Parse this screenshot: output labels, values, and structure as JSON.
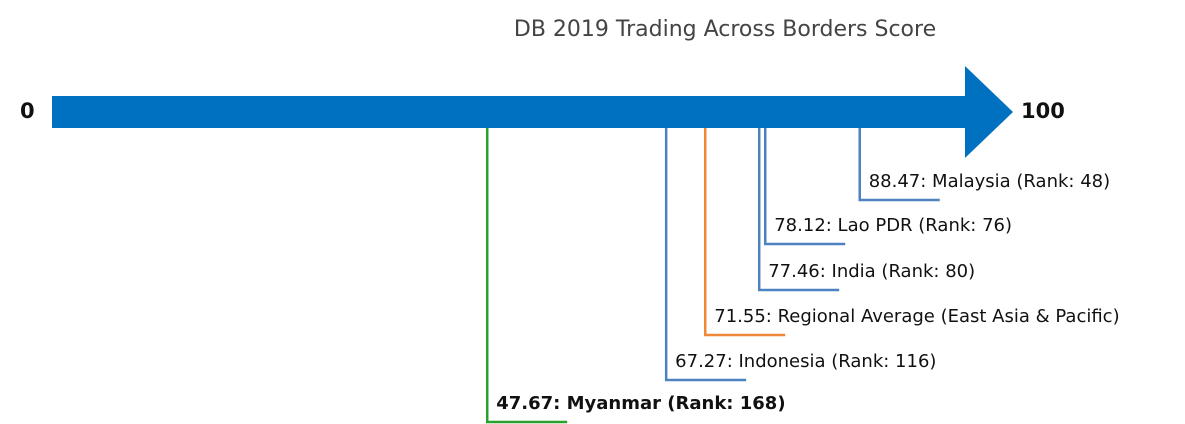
{
  "chart_data": {
    "type": "number-line",
    "title": "DB 2019 Trading Across Borders Score",
    "xlim": [
      0,
      100
    ],
    "xticks": [
      0,
      100
    ],
    "axis_color": "#0070c0",
    "values": [
      88.47,
      78.12,
      77.46,
      71.55,
      67.27,
      47.67
    ],
    "value_labels": [
      "88.47: Malaysia (Rank: 48)",
      "78.12: Lao PDR (Rank: 76)",
      "77.46: India (Rank: 80)",
      "71.55: Regional Average (East Asia & Pacific)",
      "67.27: Indonesia (Rank: 116)",
      "47.67: Myanmar (Rank: 168)"
    ],
    "colors": [
      "#4e81c0",
      "#4e81c0",
      "#4e81c0",
      "#f0883a",
      "#4e81c0",
      "#2ca02c"
    ],
    "bold": [
      false,
      false,
      false,
      false,
      false,
      true
    ]
  }
}
